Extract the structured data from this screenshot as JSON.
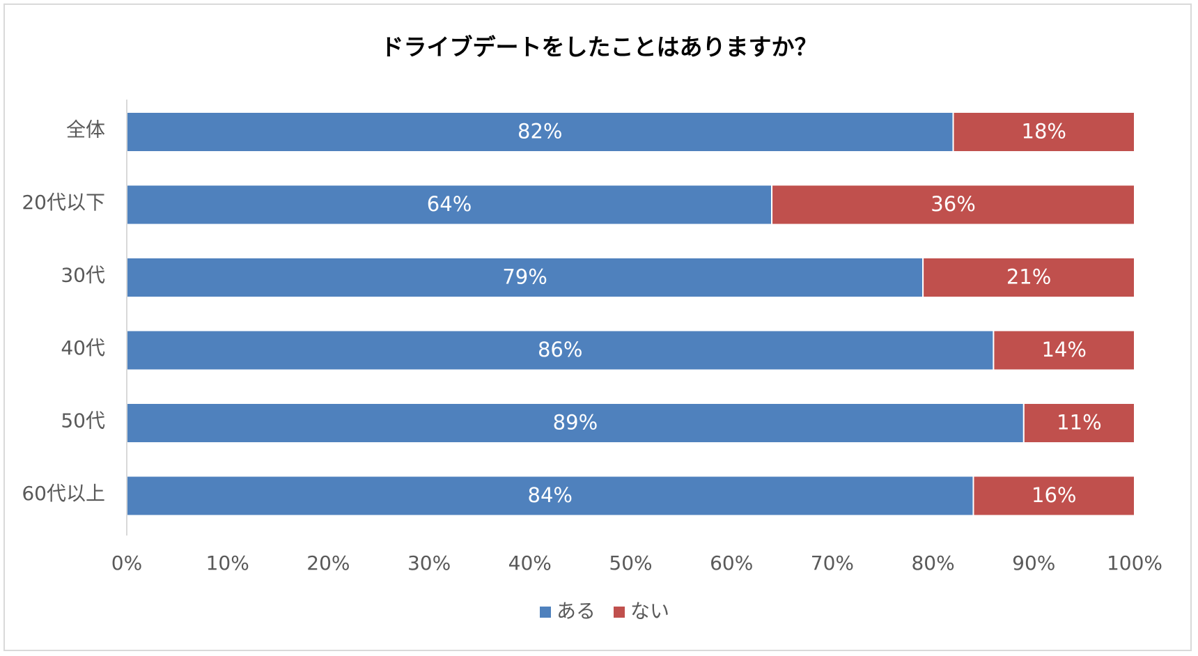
{
  "chart_data": {
    "type": "bar",
    "orientation": "horizontal",
    "stacked": "percent",
    "title": "ドライブデートをしたことはありますか？",
    "categories": [
      "全体",
      "20代以下",
      "30代",
      "40代",
      "50代",
      "60代以上"
    ],
    "series": [
      {
        "name": "ある",
        "color": "#4f81bd",
        "values": [
          82,
          64,
          79,
          86,
          89,
          84
        ],
        "labels": [
          "82%",
          "64%",
          "79%",
          "86%",
          "89%",
          "84%"
        ]
      },
      {
        "name": "ない",
        "color": "#c0504d",
        "values": [
          18,
          36,
          21,
          14,
          11,
          16
        ],
        "labels": [
          "18%",
          "36%",
          "21%",
          "14%",
          "11%",
          "16%"
        ]
      }
    ],
    "xlim": [
      0,
      100
    ],
    "x_ticks": [
      "0%",
      "10%",
      "20%",
      "30%",
      "40%",
      "50%",
      "60%",
      "70%",
      "80%",
      "90%",
      "100%"
    ],
    "grid": false,
    "legend_position": "bottom"
  }
}
